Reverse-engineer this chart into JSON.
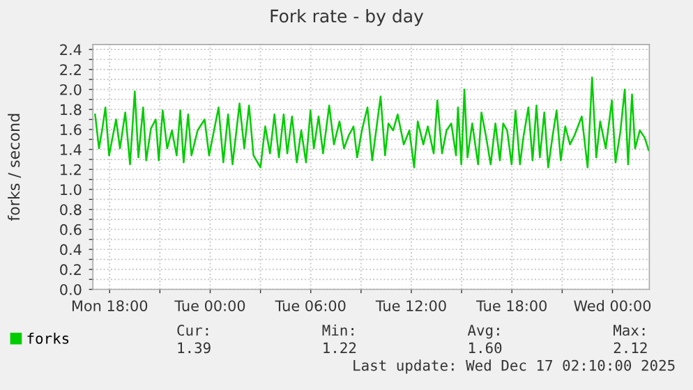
{
  "chart_data": {
    "type": "line",
    "title": "Fork rate - by day",
    "ylabel": "forks / second",
    "series": [
      {
        "name": "forks",
        "color": "#00cc00",
        "x": [
          "2025-12-15T17:08",
          "2025-12-15T17:22",
          "2025-12-15T17:34",
          "2025-12-15T17:45",
          "2025-12-15T17:58",
          "2025-12-15T18:23",
          "2025-12-15T18:37",
          "2025-12-15T18:56",
          "2025-12-15T19:13",
          "2025-12-15T19:30",
          "2025-12-15T19:43",
          "2025-12-15T20:00",
          "2025-12-15T20:11",
          "2025-12-15T20:28",
          "2025-12-15T20:45",
          "2025-12-15T20:56",
          "2025-12-15T21:10",
          "2025-12-15T21:26",
          "2025-12-15T21:43",
          "2025-12-15T22:00",
          "2025-12-15T22:13",
          "2025-12-15T22:25",
          "2025-12-15T22:41",
          "2025-12-15T22:53",
          "2025-12-15T23:15",
          "2025-12-15T23:40",
          "2025-12-15T23:56",
          "2025-12-16T00:30",
          "2025-12-16T00:47",
          "2025-12-16T01:04",
          "2025-12-16T01:20",
          "2025-12-16T01:45",
          "2025-12-16T02:02",
          "2025-12-16T02:19",
          "2025-12-16T02:35",
          "2025-12-16T03:00",
          "2025-12-16T03:17",
          "2025-12-16T03:34",
          "2025-12-16T03:50",
          "2025-12-16T04:06",
          "2025-12-16T04:23",
          "2025-12-16T04:36",
          "2025-12-16T04:53",
          "2025-12-16T05:10",
          "2025-12-16T05:26",
          "2025-12-16T05:43",
          "2025-12-16T05:59",
          "2025-12-16T06:11",
          "2025-12-16T06:28",
          "2025-12-16T06:44",
          "2025-12-16T07:06",
          "2025-12-16T07:23",
          "2025-12-16T07:43",
          "2025-12-16T07:59",
          "2025-12-16T08:16",
          "2025-12-16T08:33",
          "2025-12-16T08:46",
          "2025-12-16T09:03",
          "2025-12-16T09:23",
          "2025-12-16T09:40",
          "2025-12-16T10:10",
          "2025-12-16T10:26",
          "2025-12-16T10:38",
          "2025-12-16T10:55",
          "2025-12-16T11:11",
          "2025-12-16T11:33",
          "2025-12-16T11:53",
          "2025-12-16T12:10",
          "2025-12-16T12:23",
          "2025-12-16T12:43",
          "2025-12-16T12:59",
          "2025-12-16T13:20",
          "2025-12-16T13:33",
          "2025-12-16T13:50",
          "2025-12-16T14:06",
          "2025-12-16T14:23",
          "2025-12-16T14:40",
          "2025-12-16T14:47",
          "2025-12-16T14:59",
          "2025-12-16T15:10",
          "2025-12-16T15:21",
          "2025-12-16T15:38",
          "2025-12-16T15:59",
          "2025-12-16T16:11",
          "2025-12-16T16:28",
          "2025-12-16T16:44",
          "2025-12-16T17:01",
          "2025-12-16T17:17",
          "2025-12-16T17:29",
          "2025-12-16T17:43",
          "2025-12-16T17:59",
          "2025-12-16T18:13",
          "2025-12-16T18:29",
          "2025-12-16T18:41",
          "2025-12-16T18:59",
          "2025-12-16T19:14",
          "2025-12-16T19:28",
          "2025-12-16T19:40",
          "2025-12-16T19:56",
          "2025-12-16T20:10",
          "2025-12-16T20:26",
          "2025-12-16T20:40",
          "2025-12-16T20:55",
          "2025-12-16T21:11",
          "2025-12-16T21:28",
          "2025-12-16T21:44",
          "2025-12-16T22:10",
          "2025-12-16T22:31",
          "2025-12-16T22:47",
          "2025-12-16T23:02",
          "2025-12-16T23:16",
          "2025-12-16T23:36",
          "2025-12-16T23:58",
          "2025-12-17T00:11",
          "2025-12-17T00:28",
          "2025-12-17T00:44",
          "2025-12-17T00:56",
          "2025-12-17T01:10",
          "2025-12-17T01:21",
          "2025-12-17T01:38",
          "2025-12-17T01:55",
          "2025-12-17T02:10"
        ],
        "values": [
          1.75,
          1.41,
          1.61,
          1.82,
          1.34,
          1.7,
          1.41,
          1.77,
          1.25,
          1.98,
          1.32,
          1.82,
          1.29,
          1.61,
          1.7,
          1.29,
          1.79,
          1.41,
          1.59,
          1.34,
          1.79,
          1.27,
          1.75,
          1.34,
          1.59,
          1.7,
          1.34,
          1.82,
          1.27,
          1.75,
          1.25,
          1.86,
          1.41,
          1.84,
          1.34,
          1.22,
          1.63,
          1.36,
          1.75,
          1.32,
          1.75,
          1.36,
          1.73,
          1.27,
          1.59,
          1.27,
          1.79,
          1.41,
          1.73,
          1.36,
          1.84,
          1.45,
          1.68,
          1.41,
          1.54,
          1.63,
          1.32,
          1.59,
          1.82,
          1.29,
          1.93,
          1.34,
          1.66,
          1.59,
          1.75,
          1.45,
          1.59,
          1.22,
          1.68,
          1.45,
          1.63,
          1.36,
          1.89,
          1.36,
          1.59,
          1.66,
          1.34,
          1.82,
          1.25,
          2.0,
          1.32,
          1.66,
          1.25,
          1.77,
          1.52,
          1.25,
          1.66,
          1.29,
          1.66,
          1.59,
          1.25,
          1.79,
          1.25,
          1.52,
          1.82,
          1.29,
          1.84,
          1.32,
          1.77,
          1.22,
          1.54,
          1.79,
          1.29,
          1.63,
          1.45,
          1.54,
          1.73,
          1.22,
          2.12,
          1.32,
          1.68,
          1.41,
          1.89,
          1.27,
          1.57,
          2.0,
          1.25,
          1.95,
          1.41,
          1.59,
          1.52,
          1.39
        ]
      }
    ],
    "xlim": [
      "2025-12-15T17:00",
      "2025-12-17T02:12"
    ],
    "xticks": [
      {
        "value": "2025-12-15T18:00",
        "label": "Mon 18:00"
      },
      {
        "value": "2025-12-15T21:00",
        "label": null
      },
      {
        "value": "2025-12-16T00:00",
        "label": "Tue 00:00"
      },
      {
        "value": "2025-12-16T03:00",
        "label": null
      },
      {
        "value": "2025-12-16T06:00",
        "label": "Tue 06:00"
      },
      {
        "value": "2025-12-16T09:00",
        "label": null
      },
      {
        "value": "2025-12-16T12:00",
        "label": "Tue 12:00"
      },
      {
        "value": "2025-12-16T15:00",
        "label": null
      },
      {
        "value": "2025-12-16T18:00",
        "label": "Tue 18:00"
      },
      {
        "value": "2025-12-16T21:00",
        "label": null
      },
      {
        "value": "2025-12-17T00:00",
        "label": "Wed 00:00"
      }
    ],
    "ylim": [
      0,
      2.45
    ],
    "yticks": [
      {
        "value": 0,
        "label": "0.0"
      },
      {
        "value": 0.1,
        "label": null
      },
      {
        "value": 0.2,
        "label": "0.2"
      },
      {
        "value": 0.3,
        "label": null
      },
      {
        "value": 0.4,
        "label": "0.4"
      },
      {
        "value": 0.5,
        "label": null
      },
      {
        "value": 0.6,
        "label": "0.6"
      },
      {
        "value": 0.7,
        "label": null
      },
      {
        "value": 0.8,
        "label": "0.8"
      },
      {
        "value": 0.9,
        "label": null
      },
      {
        "value": 1.0,
        "label": "1.0"
      },
      {
        "value": 1.1,
        "label": null
      },
      {
        "value": 1.2,
        "label": "1.2"
      },
      {
        "value": 1.3,
        "label": null
      },
      {
        "value": 1.4,
        "label": "1.4"
      },
      {
        "value": 1.5,
        "label": null
      },
      {
        "value": 1.6,
        "label": "1.6"
      },
      {
        "value": 1.7,
        "label": null
      },
      {
        "value": 1.8,
        "label": "1.8"
      },
      {
        "value": 1.9,
        "label": null
      },
      {
        "value": 2.0,
        "label": "2.0"
      },
      {
        "value": 2.1,
        "label": null
      },
      {
        "value": 2.2,
        "label": "2.2"
      },
      {
        "value": 2.3,
        "label": null
      },
      {
        "value": 2.4,
        "label": "2.4"
      }
    ],
    "grid": true,
    "legend": "bottom left",
    "marker": "none",
    "line_style": "solid",
    "annotations": [
      "Cur:",
      "1.39",
      "Min:",
      "1.22",
      "Avg:",
      "1.60",
      "Max:",
      "2.12",
      "Last update: Wed Dec 17 02:10:00 2025"
    ]
  }
}
